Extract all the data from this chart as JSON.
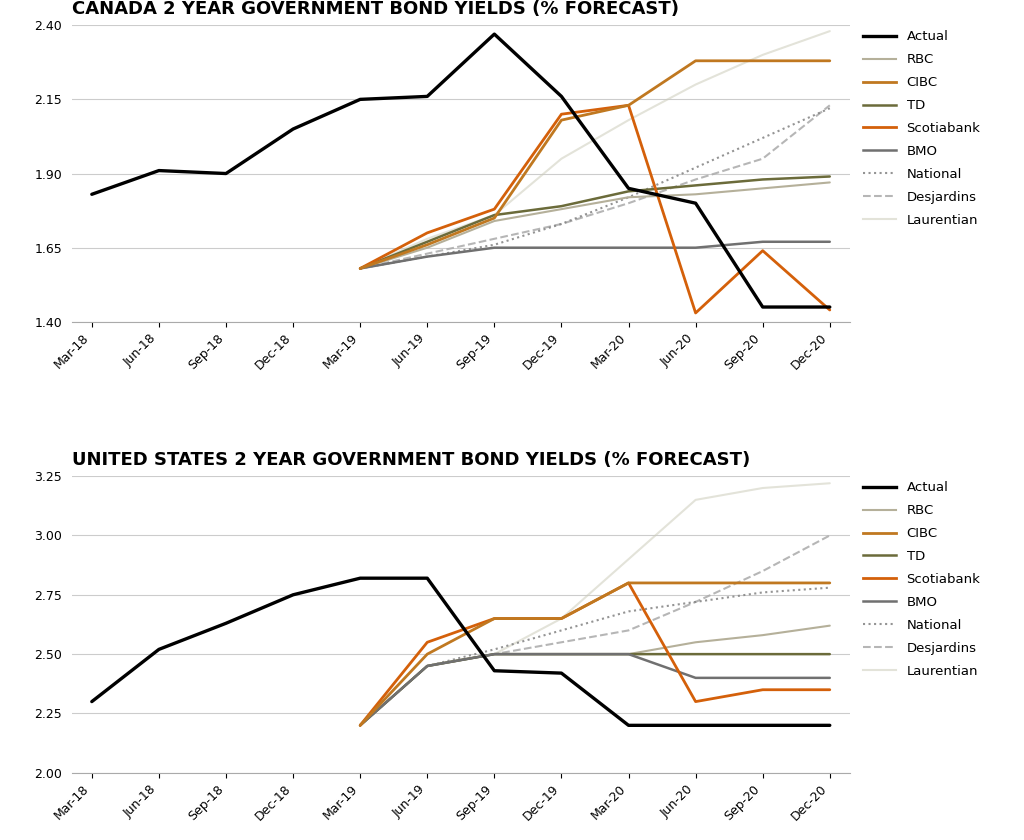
{
  "canada_title": "CANADA 2 YEAR GOVERNMENT BOND YIELDS (% FORECAST)",
  "us_title": "UNITED STATES 2 YEAR GOVERNMENT BOND YIELDS (% FORECAST)",
  "xtick_labels": [
    "Mar-18",
    "Jun-18",
    "Sep-18",
    "Dec-18",
    "Mar-19",
    "Jun-19",
    "Sep-19",
    "Dec-19",
    "Mar-20",
    "Jun-20",
    "Sep-20",
    "Dec-20"
  ],
  "canada": {
    "ylim": [
      1.4,
      2.4
    ],
    "yticks": [
      1.4,
      1.65,
      1.9,
      2.15,
      2.4
    ],
    "actual": [
      1.83,
      1.91,
      1.9,
      2.05,
      2.15,
      2.16,
      2.37,
      2.16,
      1.85,
      1.8,
      1.45,
      1.45
    ],
    "rbc": [
      null,
      null,
      null,
      null,
      1.58,
      1.65,
      1.74,
      1.78,
      1.82,
      1.83,
      1.85,
      1.87
    ],
    "cibc": [
      null,
      null,
      null,
      null,
      1.58,
      1.66,
      1.75,
      2.08,
      2.13,
      2.28,
      2.28,
      2.28
    ],
    "td": [
      null,
      null,
      null,
      null,
      1.58,
      1.67,
      1.76,
      1.79,
      1.84,
      1.86,
      1.88,
      1.89
    ],
    "scotiabank": [
      null,
      null,
      null,
      null,
      1.58,
      1.7,
      1.78,
      2.1,
      2.13,
      1.43,
      1.64,
      1.44
    ],
    "bmo": [
      null,
      null,
      null,
      null,
      1.58,
      1.62,
      1.65,
      1.65,
      1.65,
      1.65,
      1.67,
      1.67
    ],
    "national": [
      null,
      null,
      null,
      null,
      1.58,
      1.62,
      1.66,
      1.73,
      1.82,
      1.92,
      2.02,
      2.12
    ],
    "desjardins": [
      null,
      null,
      null,
      null,
      1.58,
      1.63,
      1.68,
      1.73,
      1.8,
      1.88,
      1.95,
      2.13
    ],
    "laurentian": [
      null,
      null,
      null,
      null,
      1.58,
      1.68,
      1.76,
      1.95,
      2.08,
      2.2,
      2.3,
      2.38
    ]
  },
  "us": {
    "ylim": [
      2.0,
      3.25
    ],
    "yticks": [
      2.0,
      2.25,
      2.5,
      2.75,
      3.0,
      3.25
    ],
    "actual": [
      2.3,
      2.52,
      2.63,
      2.75,
      2.82,
      2.82,
      2.43,
      2.42,
      2.2,
      2.2,
      2.2,
      2.2
    ],
    "rbc": [
      null,
      null,
      null,
      null,
      2.2,
      2.45,
      2.5,
      2.5,
      2.5,
      2.55,
      2.58,
      2.62
    ],
    "cibc": [
      null,
      null,
      null,
      null,
      2.2,
      2.5,
      2.65,
      2.65,
      2.8,
      2.8,
      2.8,
      2.8
    ],
    "td": [
      null,
      null,
      null,
      null,
      2.2,
      2.45,
      2.5,
      2.5,
      2.5,
      2.5,
      2.5,
      2.5
    ],
    "scotiabank": [
      null,
      null,
      null,
      null,
      2.2,
      2.55,
      2.65,
      2.65,
      2.8,
      2.3,
      2.35,
      2.35
    ],
    "bmo": [
      null,
      null,
      null,
      null,
      2.2,
      2.45,
      2.5,
      2.5,
      2.5,
      2.4,
      2.4,
      2.4
    ],
    "national": [
      null,
      null,
      null,
      null,
      2.2,
      2.45,
      2.52,
      2.6,
      2.68,
      2.72,
      2.76,
      2.78
    ],
    "desjardins": [
      null,
      null,
      null,
      null,
      2.2,
      2.45,
      2.5,
      2.55,
      2.6,
      2.72,
      2.85,
      3.0
    ],
    "laurentian": [
      null,
      null,
      null,
      null,
      2.2,
      2.45,
      2.5,
      2.65,
      2.9,
      3.15,
      3.2,
      3.22
    ]
  },
  "colors": {
    "actual": "#000000",
    "rbc": "#b5b09a",
    "cibc": "#c07820",
    "td": "#6b6b3a",
    "scotiabank": "#d4600a",
    "bmo": "#707070",
    "national": "#888888",
    "desjardins": "#aaaaaa",
    "laurentian": "#ccccbb"
  },
  "bg_color": "#ffffff",
  "title_fontsize": 13,
  "tick_fontsize": 9,
  "legend_fontsize": 9.5
}
